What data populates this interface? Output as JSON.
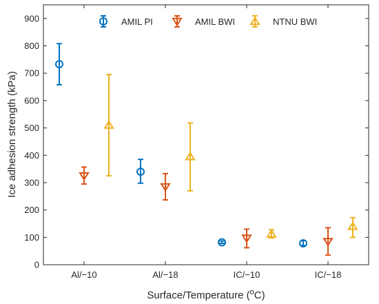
{
  "chart_data": {
    "type": "scatter",
    "subtype": "errorbar",
    "categories": [
      "Al/−10",
      "Al/−18",
      "IC/−10",
      "IC/−18"
    ],
    "xlabel_text": "Surface/Temperature (",
    "xlabel_sup": "o",
    "xlabel_tail": "C)",
    "ylabel": "Ice adhesion strength (kPa)",
    "ylim": [
      0,
      950
    ],
    "yticks": [
      0,
      100,
      200,
      300,
      400,
      500,
      600,
      700,
      800,
      900
    ],
    "grid": false,
    "legend_position": "top",
    "series": [
      {
        "name": "AMIL PI",
        "color": "#0072BD",
        "marker": "circle",
        "values": [
          733,
          340,
          82,
          78
        ],
        "err_low": [
          658,
          298,
          78,
          70
        ],
        "err_high": [
          808,
          385,
          87,
          88
        ]
      },
      {
        "name": "AMIL BWI",
        "color": "#D95319",
        "marker": "triangle-down",
        "values": [
          325,
          285,
          97,
          85
        ],
        "err_low": [
          295,
          237,
          62,
          35
        ],
        "err_high": [
          357,
          333,
          130,
          135
        ]
      },
      {
        "name": "NTNU BWI",
        "color": "#EDB120",
        "marker": "triangle-up",
        "values": [
          510,
          395,
          112,
          140
        ],
        "err_low": [
          325,
          270,
          98,
          100
        ],
        "err_high": [
          695,
          518,
          128,
          172
        ]
      }
    ]
  }
}
